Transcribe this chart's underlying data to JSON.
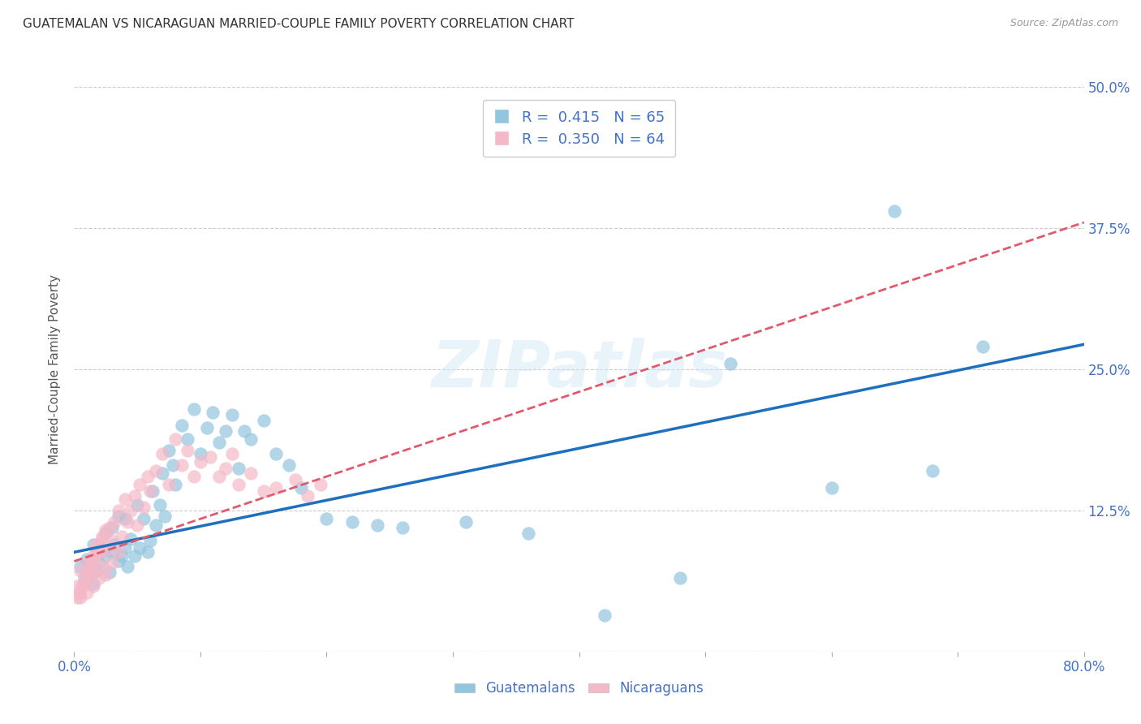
{
  "title": "GUATEMALAN VS NICARAGUAN MARRIED-COUPLE FAMILY POVERTY CORRELATION CHART",
  "source": "Source: ZipAtlas.com",
  "ylabel": "Married-Couple Family Poverty",
  "xlim": [
    0.0,
    0.8
  ],
  "ylim": [
    0.0,
    0.5
  ],
  "xticks": [
    0.0,
    0.1,
    0.2,
    0.3,
    0.4,
    0.5,
    0.6,
    0.7,
    0.8
  ],
  "xticklabels": [
    "0.0%",
    "",
    "",
    "",
    "",
    "",
    "",
    "",
    "80.0%"
  ],
  "yticks": [
    0.0,
    0.125,
    0.25,
    0.375,
    0.5
  ],
  "yticklabels_right": [
    "",
    "12.5%",
    "25.0%",
    "37.5%",
    "50.0%"
  ],
  "legend_label1": "R =  0.415   N = 65",
  "legend_label2": "R =  0.350   N = 64",
  "legend_label_bottom1": "Guatemalans",
  "legend_label_bottom2": "Nicaraguans",
  "blue_color": "#92c5de",
  "pink_color": "#f4b8c8",
  "blue_line_color": "#1f6fbf",
  "pink_line_color": "#e05a6e",
  "axis_label_color": "#4472c4",
  "watermark": "ZIPatlas",
  "blue_scatter_x": [
    0.005,
    0.008,
    0.01,
    0.012,
    0.015,
    0.015,
    0.018,
    0.02,
    0.022,
    0.025,
    0.025,
    0.028,
    0.03,
    0.03,
    0.032,
    0.035,
    0.035,
    0.038,
    0.04,
    0.04,
    0.042,
    0.045,
    0.048,
    0.05,
    0.052,
    0.055,
    0.058,
    0.06,
    0.062,
    0.065,
    0.068,
    0.07,
    0.072,
    0.075,
    0.078,
    0.08,
    0.085,
    0.09,
    0.095,
    0.1,
    0.105,
    0.11,
    0.115,
    0.12,
    0.125,
    0.13,
    0.135,
    0.14,
    0.15,
    0.16,
    0.17,
    0.18,
    0.2,
    0.22,
    0.24,
    0.26,
    0.31,
    0.36,
    0.42,
    0.48,
    0.52,
    0.6,
    0.65,
    0.68,
    0.72
  ],
  "blue_scatter_y": [
    0.075,
    0.065,
    0.082,
    0.068,
    0.06,
    0.095,
    0.072,
    0.078,
    0.09,
    0.085,
    0.105,
    0.07,
    0.088,
    0.11,
    0.095,
    0.08,
    0.12,
    0.085,
    0.092,
    0.118,
    0.075,
    0.1,
    0.085,
    0.13,
    0.092,
    0.118,
    0.088,
    0.098,
    0.142,
    0.112,
    0.13,
    0.158,
    0.12,
    0.178,
    0.165,
    0.148,
    0.2,
    0.188,
    0.215,
    0.175,
    0.198,
    0.212,
    0.185,
    0.195,
    0.21,
    0.162,
    0.195,
    0.188,
    0.205,
    0.175,
    0.165,
    0.145,
    0.118,
    0.115,
    0.112,
    0.11,
    0.115,
    0.105,
    0.032,
    0.065,
    0.255,
    0.145,
    0.39,
    0.16,
    0.27
  ],
  "pink_scatter_x": [
    0.002,
    0.005,
    0.005,
    0.008,
    0.01,
    0.01,
    0.012,
    0.015,
    0.015,
    0.018,
    0.018,
    0.02,
    0.02,
    0.022,
    0.022,
    0.025,
    0.025,
    0.028,
    0.03,
    0.03,
    0.032,
    0.035,
    0.035,
    0.038,
    0.04,
    0.042,
    0.045,
    0.048,
    0.05,
    0.052,
    0.055,
    0.058,
    0.06,
    0.065,
    0.07,
    0.075,
    0.08,
    0.085,
    0.09,
    0.095,
    0.1,
    0.108,
    0.115,
    0.12,
    0.125,
    0.13,
    0.14,
    0.15,
    0.16,
    0.175,
    0.185,
    0.195,
    0.002,
    0.004,
    0.006,
    0.008,
    0.01,
    0.012,
    0.014,
    0.016,
    0.018,
    0.02,
    0.022,
    0.025
  ],
  "pink_scatter_y": [
    0.058,
    0.048,
    0.072,
    0.062,
    0.052,
    0.078,
    0.068,
    0.058,
    0.085,
    0.072,
    0.095,
    0.065,
    0.088,
    0.075,
    0.102,
    0.068,
    0.09,
    0.11,
    0.078,
    0.098,
    0.115,
    0.088,
    0.125,
    0.102,
    0.135,
    0.115,
    0.125,
    0.138,
    0.112,
    0.148,
    0.128,
    0.155,
    0.142,
    0.16,
    0.175,
    0.148,
    0.188,
    0.165,
    0.178,
    0.155,
    0.168,
    0.172,
    0.155,
    0.162,
    0.175,
    0.148,
    0.158,
    0.142,
    0.145,
    0.152,
    0.138,
    0.148,
    0.048,
    0.052,
    0.058,
    0.062,
    0.068,
    0.072,
    0.078,
    0.082,
    0.09,
    0.095,
    0.1,
    0.108
  ],
  "blue_line_x": [
    0.0,
    0.8
  ],
  "blue_line_y": [
    0.088,
    0.272
  ],
  "pink_line_x": [
    0.0,
    0.8
  ],
  "pink_line_y": [
    0.08,
    0.38
  ],
  "background_color": "#ffffff",
  "grid_color": "#cccccc"
}
